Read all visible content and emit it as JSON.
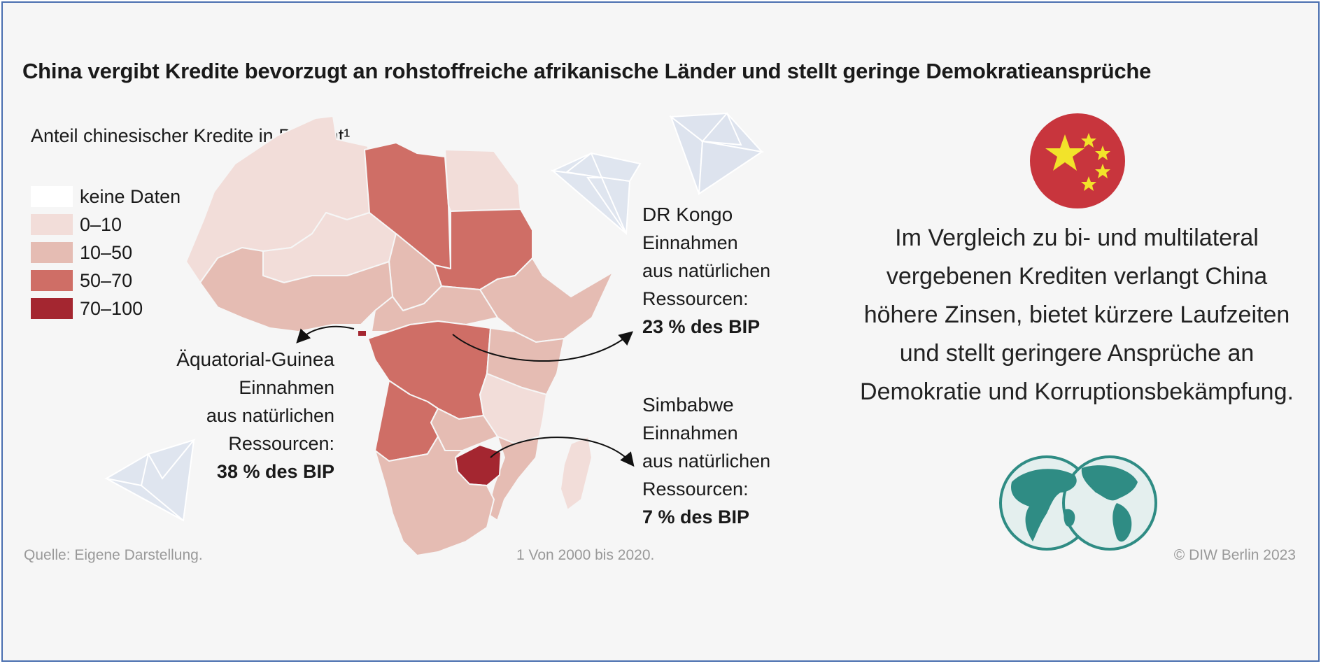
{
  "title": "China vergibt Kredite bevorzugt an rohstoffreiche afrikanische Länder und stellt geringe Demokratieansprüche",
  "legend": {
    "title_bold": "Anteil chinesischer Kredite",
    "title_rest": " in Prozent¹",
    "items": [
      {
        "label": "keine Daten",
        "color": "#ffffff"
      },
      {
        "label": "0–10",
        "color": "#f2ddd9"
      },
      {
        "label": "10–50",
        "color": "#e5bcb3"
      },
      {
        "label": "50–70",
        "color": "#cf6e66"
      },
      {
        "label": "70–100",
        "color": "#a42630"
      }
    ]
  },
  "callouts": {
    "equatorial_guinea": {
      "name": "Äquatorial-Guinea",
      "line1": "Einnahmen",
      "line2": "aus natürlichen",
      "line3": "Ressourcen:",
      "value": "38 % des BIP"
    },
    "dr_congo": {
      "name": "DR Kongo",
      "line1": "Einnahmen",
      "line2": "aus natürlichen",
      "line3": "Ressourcen:",
      "value": "23 % des BIP"
    },
    "zimbabwe": {
      "name": "Simbabwe",
      "line1": "Einnahmen",
      "line2": "aus natürlichen",
      "line3": "Ressourcen:",
      "value": "7 % des BIP"
    }
  },
  "china_text": "Im Vergleich zu bi- und multilateral vergebenen Krediten verlangt China höhere Zinsen, bietet kürzere Laufzeiten und stellt geringere Ansprüche an Demokratie und Korruptionsbekämpfung.",
  "footer": {
    "source": "Quelle: Eigene Darstellung.",
    "note": "1  Von 2000 bis 2020.",
    "copyright": "© DIW Berlin 2023"
  },
  "colors": {
    "frame": "#4a6fb0",
    "flag_red": "#c8353d",
    "flag_yellow": "#f2e32a",
    "globe_teal": "#2f8c84",
    "diamond": "#d7deea"
  },
  "icons": [
    "diamond-icon",
    "china-flag-icon",
    "globe-icon"
  ]
}
